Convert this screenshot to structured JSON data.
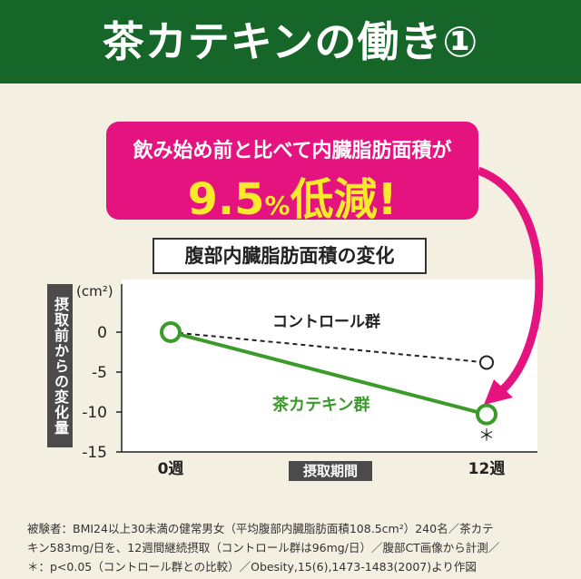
{
  "header": {
    "title": "茶カテキンの働き①"
  },
  "callout": {
    "line1": "飲み始め前と比べて内臓脂肪面積が",
    "value": "9.5",
    "unit": "%",
    "suffix": "低減!"
  },
  "colors": {
    "header_bg": "#16662a",
    "callout_bg": "#e4137f",
    "callout_value": "#f7ea2a",
    "catechin": "#3a9a2a",
    "control": "#222222"
  },
  "chart_data": {
    "type": "line",
    "title": "腹部内臓脂肪面積の変化",
    "ylabel": "摂取前からの変化量",
    "yunit": "(cm²)",
    "xlabel": "摂取期間",
    "categories": [
      "0週",
      "12週"
    ],
    "ylim": [
      -15,
      0
    ],
    "yticks": [
      0,
      -5,
      -10,
      -15
    ],
    "grid": false,
    "series": [
      {
        "name": "コントロール群",
        "values": [
          0,
          -3.8
        ],
        "style": "dashed"
      },
      {
        "name": "茶カテキン群",
        "values": [
          0,
          -10.3
        ],
        "style": "solid"
      }
    ],
    "annotations": [
      "＊"
    ]
  },
  "footnote": {
    "line1": "被験者：BMI24以上30未満の健常男女（平均腹部内臓脂肪面積108.5cm²）240名／茶カテ",
    "line2": "キン583mg/日を、12週間継続摂取（コントロール群は96mg/日）／腹部CT画像から計測／",
    "line3": "＊：p<0.05（コントロール群との比較）／Obesity,15(6),1473-1483(2007)より作図"
  }
}
